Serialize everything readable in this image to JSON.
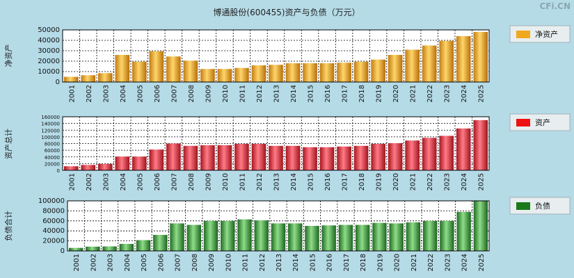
{
  "title": "博通股份(600455)资产与负债（万元）",
  "brand": "CFi.CN",
  "chart_data": [
    {
      "type": "bar",
      "name": "net-assets",
      "ylabel": "净资产",
      "legend": "净资产",
      "legend_color": "#f0a81c",
      "ylim": [
        0,
        50000
      ],
      "yticks": [
        0,
        10000,
        20000,
        30000,
        40000,
        50000
      ],
      "categories": [
        "2001",
        "2002",
        "2003",
        "2004",
        "2005",
        "2006",
        "2007",
        "2008",
        "2009",
        "2010",
        "2011",
        "2012",
        "2013",
        "2014",
        "2015",
        "2016",
        "2017",
        "2018",
        "2019",
        "2020",
        "2021",
        "2022",
        "2023",
        "2024",
        "2025"
      ],
      "values": [
        5000,
        6500,
        8500,
        26000,
        19500,
        29500,
        24500,
        20500,
        12500,
        12500,
        13500,
        16000,
        16500,
        18000,
        18000,
        18000,
        18500,
        19500,
        21500,
        26000,
        31000,
        35000,
        39500,
        44000,
        48000
      ]
    },
    {
      "type": "bar",
      "name": "total-assets",
      "ylabel": "资产总计",
      "legend": "资产",
      "legend_color": "#ee1111",
      "ylim": [
        0,
        160000
      ],
      "yticks": [
        0,
        20000,
        40000,
        60000,
        80000,
        100000,
        120000,
        140000,
        160000
      ],
      "categories": [
        "2001",
        "2002",
        "2003",
        "2004",
        "2005",
        "2006",
        "2007",
        "2008",
        "2009",
        "2010",
        "2011",
        "2012",
        "2013",
        "2014",
        "2015",
        "2016",
        "2017",
        "2018",
        "2019",
        "2020",
        "2021",
        "2022",
        "2023",
        "2024",
        "2025"
      ],
      "values": [
        12000,
        16000,
        19000,
        41000,
        41000,
        62000,
        80000,
        73000,
        75000,
        75000,
        79000,
        79000,
        73000,
        73000,
        69000,
        69000,
        71000,
        73000,
        79000,
        81000,
        89000,
        97000,
        103000,
        125000,
        150000
      ]
    },
    {
      "type": "bar",
      "name": "total-liabilities",
      "ylabel": "负债合计",
      "legend": "负债",
      "legend_color": "#1a7a1a",
      "ylim": [
        0,
        100000
      ],
      "yticks": [
        0,
        20000,
        40000,
        60000,
        80000,
        100000
      ],
      "categories": [
        "2001",
        "2002",
        "2003",
        "2004",
        "2005",
        "2006",
        "2007",
        "2008",
        "2009",
        "2010",
        "2011",
        "2012",
        "2013",
        "2014",
        "2015",
        "2016",
        "2017",
        "2018",
        "2019",
        "2020",
        "2021",
        "2022",
        "2023",
        "2024",
        "2025"
      ],
      "values": [
        6000,
        8500,
        9000,
        14000,
        21500,
        32000,
        55000,
        52000,
        60000,
        60000,
        63000,
        61000,
        55000,
        55000,
        50000,
        51000,
        52000,
        52000,
        56000,
        55000,
        57000,
        60000,
        60000,
        78000,
        100000
      ]
    }
  ]
}
